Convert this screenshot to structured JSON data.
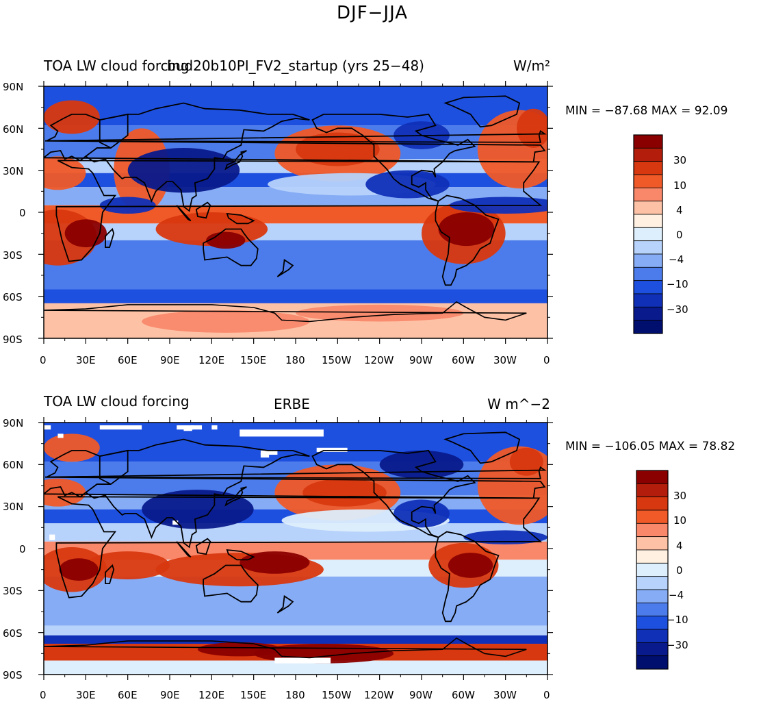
{
  "page_title": "DJF−JJA",
  "panels": [
    {
      "left_title": "TOA LW cloud forcing",
      "center_title": "bud20b10PI_FV2_startup (yrs 25−48)",
      "units": "W/m²",
      "stats": "MIN = −87.68  MAX =  92.09",
      "lat_labels": [
        "90N",
        "60N",
        "30N",
        "0",
        "30S",
        "60S",
        "90S"
      ],
      "lon_labels": [
        "0",
        "30E",
        "60E",
        "90E",
        "120E",
        "150E",
        "180",
        "150W",
        "120W",
        "90W",
        "60W",
        "30W",
        "0"
      ],
      "colorbar_labels": [
        "30",
        "10",
        "4",
        "0",
        "−4",
        "−10",
        "−30"
      ]
    },
    {
      "left_title": "TOA LW cloud forcing",
      "center_title": "ERBE",
      "units": "W m^−2",
      "stats": "MIN = −106.05  MAX =  78.82",
      "lat_labels": [
        "90N",
        "60N",
        "30N",
        "0",
        "30S",
        "60S",
        "90S"
      ],
      "lon_labels": [
        "0",
        "30E",
        "60E",
        "90E",
        "120E",
        "150E",
        "180",
        "150W",
        "120W",
        "90W",
        "60W",
        "30W",
        "0"
      ],
      "colorbar_labels": [
        "30",
        "10",
        "4",
        "0",
        "−4",
        "−10",
        "−30"
      ]
    }
  ],
  "colors": {
    "palette": [
      "#8a0000",
      "#b21e0b",
      "#d8380f",
      "#f05a28",
      "#f9886a",
      "#fdc2a6",
      "#fff0e2",
      "#ddeefc",
      "#b7d2fb",
      "#86acf5",
      "#4c7ceb",
      "#1e50e0",
      "#1030b8",
      "#081a8c",
      "#000e6e"
    ]
  }
}
